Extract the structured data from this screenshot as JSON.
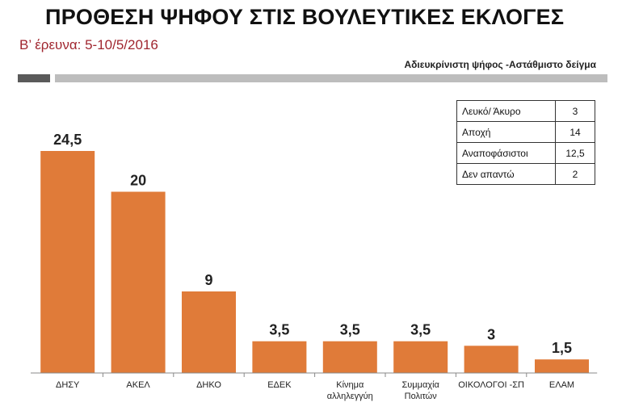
{
  "header": {
    "title": "ΠΡΟΘΕΣΗ ΨΗΦΟΥ ΣΤΙΣ ΒΟΥΛΕΥΤΙΚΕΣ ΕΚΛΟΓΕΣ",
    "subtitle": "Β’ έρευνα: 5-10/5/2016",
    "note": "Αδιευκρίνιστη ψήφος -Αστάθμιστο δείγμα"
  },
  "colors": {
    "bar": "#e07b39",
    "subtitle": "#a0262f",
    "accent_dark": "#5a5a5a",
    "accent_light": "#bdbdbd"
  },
  "side_table": [
    {
      "label": "Λευκό/ Άκυρο",
      "value": "3"
    },
    {
      "label": "Αποχή",
      "value": "14"
    },
    {
      "label": "Αναποφάσιστοι",
      "value": "12,5"
    },
    {
      "label": "Δεν απαντώ",
      "value": "2"
    }
  ],
  "chart_data": {
    "type": "bar",
    "categories": [
      [
        "ΔΗΣΥ"
      ],
      [
        "ΑΚΕΛ"
      ],
      [
        "ΔΗΚΟ"
      ],
      [
        "ΕΔΕΚ"
      ],
      [
        "Κίνημα",
        "αλληλεγγύη"
      ],
      [
        "Συμμαχία",
        "Πολιτών"
      ],
      [
        "ΟΙΚΟΛΟΓΟΙ -ΣΠ"
      ],
      [
        "ΕΛΑΜ"
      ]
    ],
    "values": [
      24.5,
      20,
      9,
      3.5,
      3.5,
      3.5,
      3,
      1.5
    ],
    "value_labels": [
      "24,5",
      "20",
      "9",
      "3,5",
      "3,5",
      "3,5",
      "3",
      "1,5"
    ],
    "ylim": [
      0,
      25
    ],
    "grid": false,
    "legend": "none"
  }
}
